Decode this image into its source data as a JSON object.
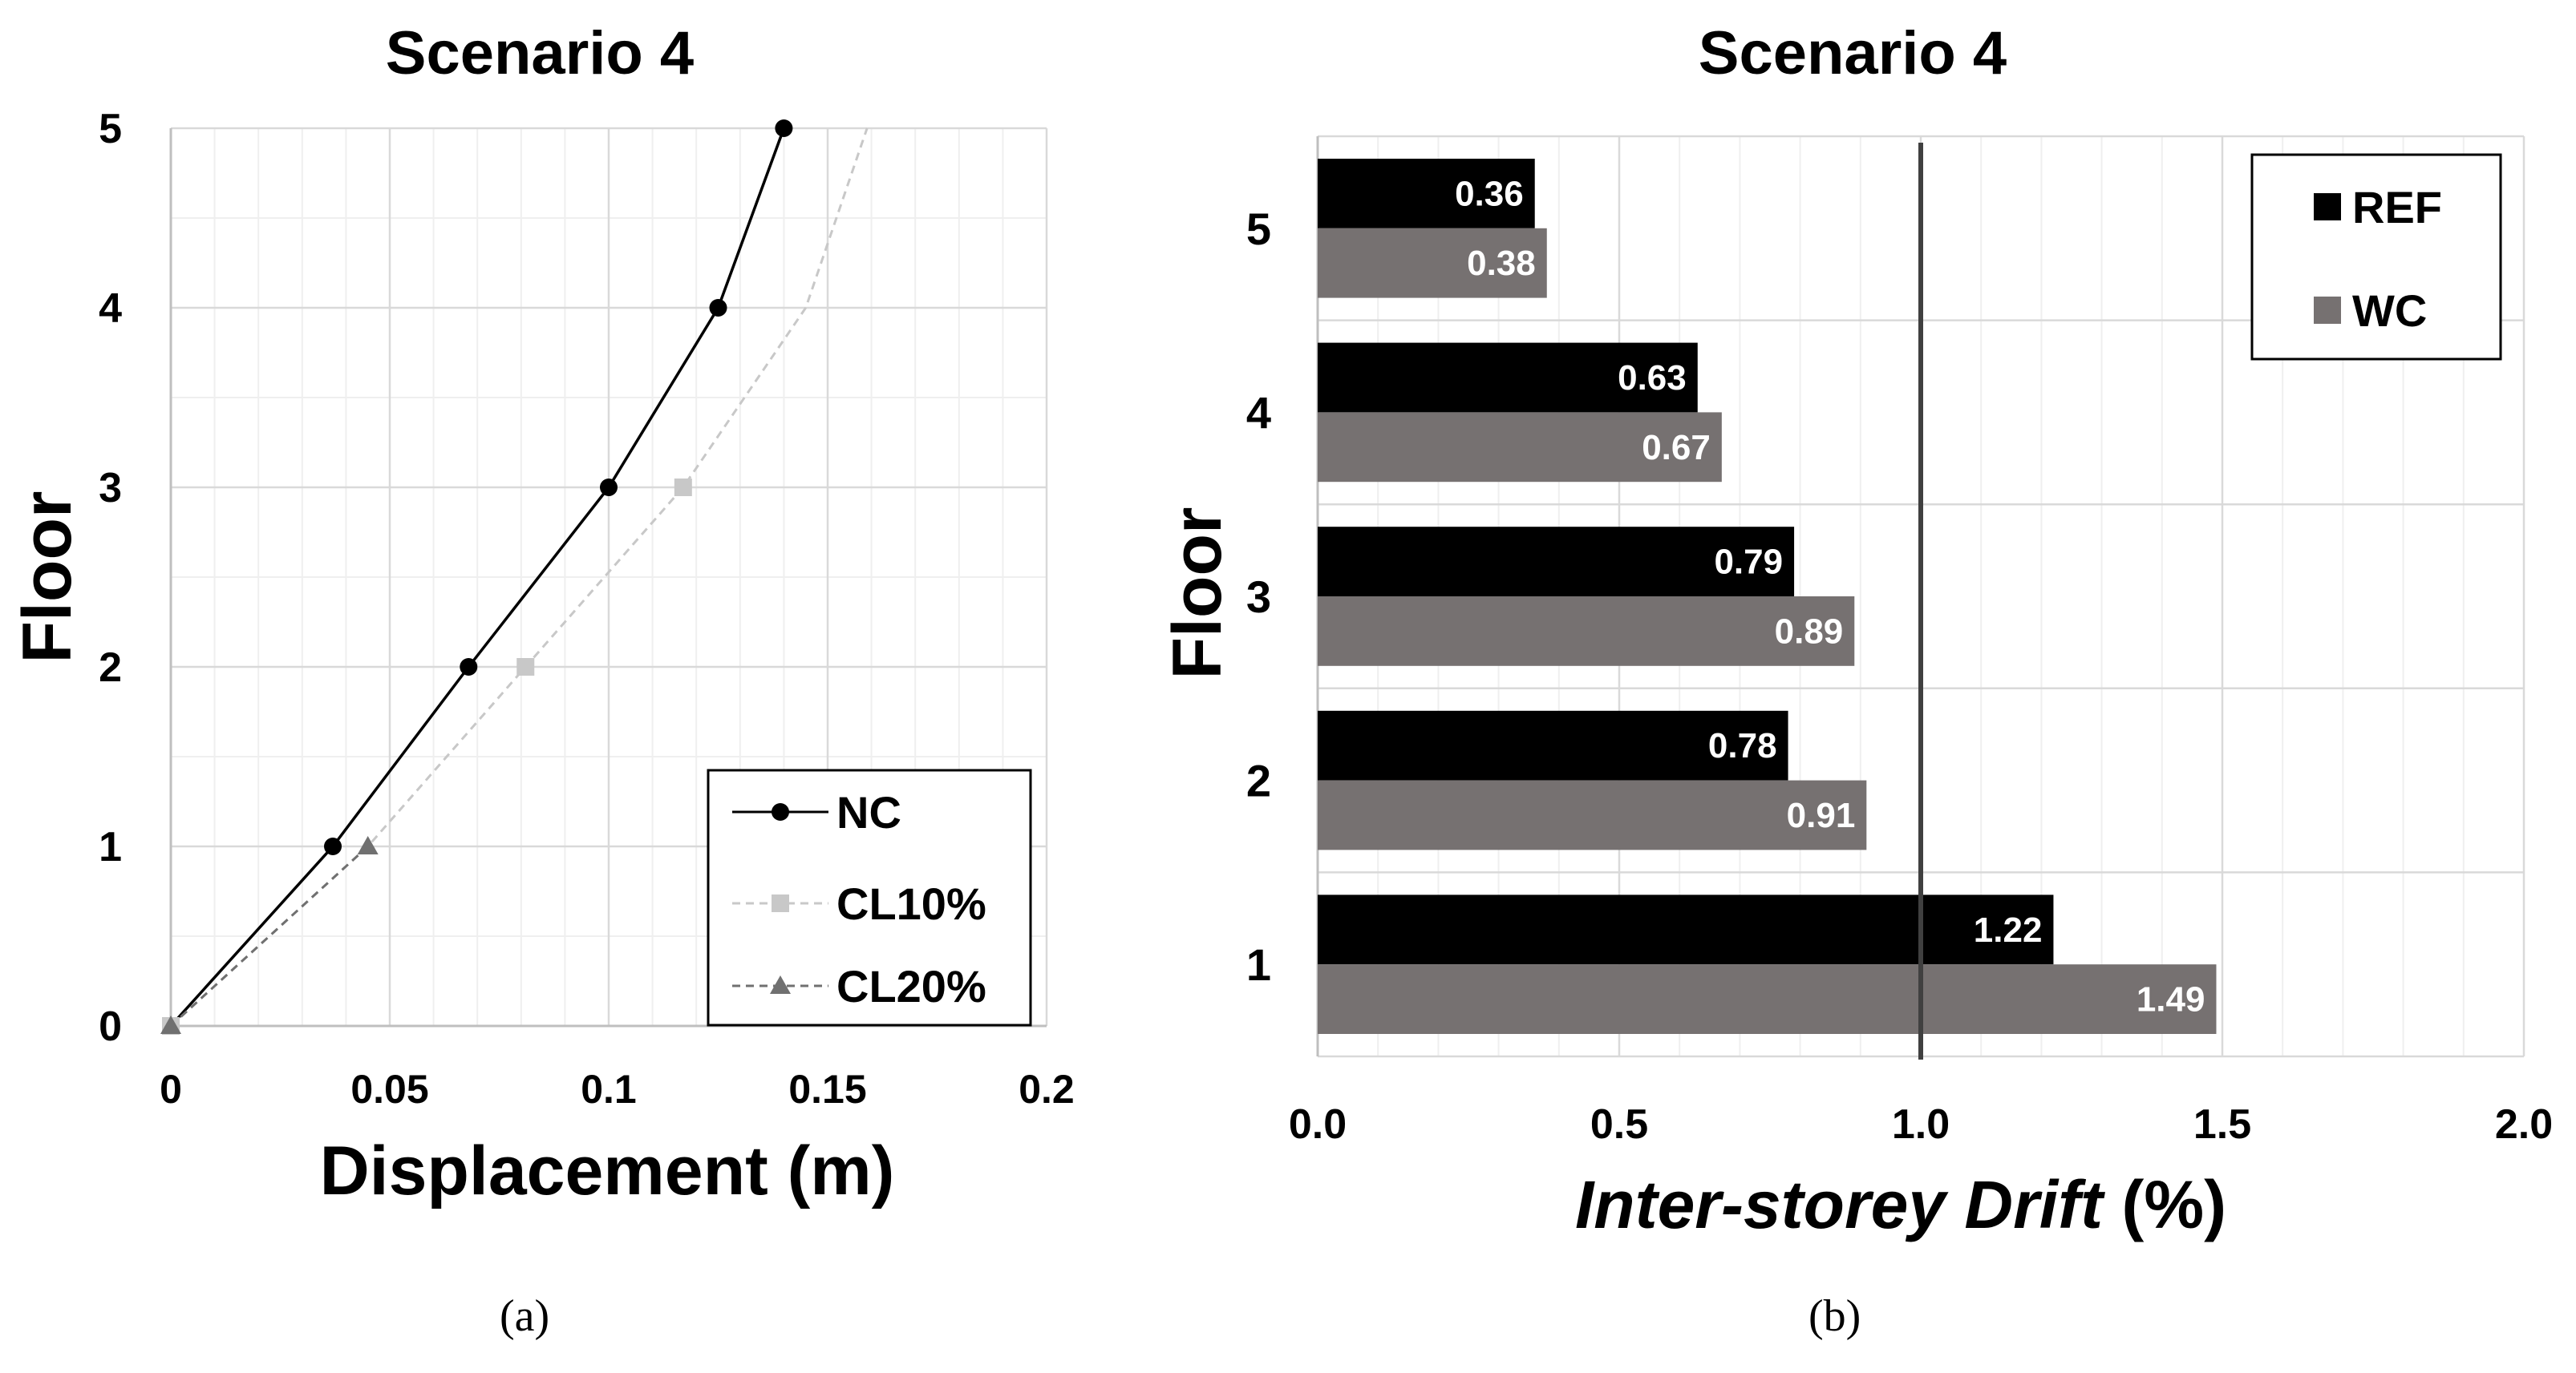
{
  "chart_data": [
    {
      "type": "line",
      "title": "Scenario 4",
      "xlabel": "Displacement (m)",
      "ylabel": "Floor",
      "xlim": [
        0,
        0.2
      ],
      "ylim": [
        0,
        5
      ],
      "xticks": [
        0,
        0.05,
        0.1,
        0.15,
        0.2
      ],
      "xtick_labels": [
        "0",
        "0.05",
        "0.1",
        "0.15",
        "0.2"
      ],
      "yticks": [
        0,
        1,
        2,
        3,
        4,
        5
      ],
      "ytick_labels": [
        "0",
        "1",
        "2",
        "3",
        "4",
        "5"
      ],
      "grid": true,
      "legend_position": "bottom-right",
      "series": [
        {
          "name": "NC",
          "color": "#000000",
          "marker": "circle",
          "dash": "solid",
          "points": [
            [
              0,
              0
            ],
            [
              0.037,
              1
            ],
            [
              0.068,
              2
            ],
            [
              0.1,
              3
            ],
            [
              0.125,
              4
            ],
            [
              0.14,
              5
            ]
          ]
        },
        {
          "name": "CL10%",
          "color": "#c8c8c8",
          "marker": "square",
          "dash": "dashed",
          "points": [
            [
              0,
              0
            ],
            [
              0.045,
              1
            ],
            [
              0.081,
              2
            ],
            [
              0.117,
              3
            ],
            [
              0.145,
              4
            ],
            [
              0.159,
              5
            ]
          ]
        },
        {
          "name": "CL20%",
          "color": "#707070",
          "marker": "triangle",
          "dash": "dashed",
          "points": [
            [
              0,
              0
            ],
            [
              0.045,
              1
            ]
          ]
        }
      ],
      "caption": "(a)"
    },
    {
      "type": "bar",
      "orientation": "horizontal",
      "title": "Scenario 4",
      "xlabel_italic": "Inter-storey Drift",
      "xlabel_unit": " (%)",
      "ylabel": "Floor",
      "categories": [
        "5",
        "4",
        "3",
        "2",
        "1"
      ],
      "xlim": [
        0,
        2.0
      ],
      "xticks": [
        0,
        0.5,
        1.0,
        1.5,
        2.0
      ],
      "xtick_labels": [
        "0.0",
        "0.5",
        "1.0",
        "1.5",
        "2.0"
      ],
      "reference_line": 1.0,
      "grid": true,
      "legend_position": "top-right",
      "series": [
        {
          "name": "REF",
          "color": "#000000",
          "values": [
            0.36,
            0.63,
            0.79,
            0.78,
            1.22
          ],
          "labels": [
            "0.36",
            "0.63",
            "0.79",
            "0.78",
            "1.22"
          ]
        },
        {
          "name": "WC",
          "color": "#767171",
          "values": [
            0.38,
            0.67,
            0.89,
            0.91,
            1.49
          ],
          "labels": [
            "0.38",
            "0.67",
            "0.89",
            "0.91",
            "1.49"
          ]
        }
      ],
      "caption": "(b)"
    }
  ]
}
